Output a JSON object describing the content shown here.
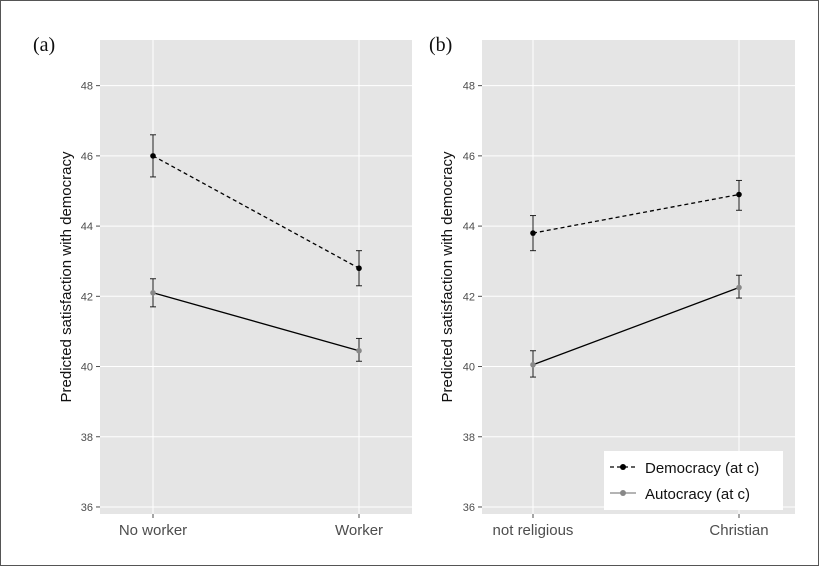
{
  "figure_colors": {
    "panel_bg": "#e5e5e5",
    "grid": "#ffffff",
    "democracy": "#000000",
    "autocracy": "#888888",
    "errorbar": "#222222",
    "frame": "#555555"
  },
  "chart_data": [
    {
      "type": "line",
      "panel_label": "(a)",
      "categories": [
        "No worker",
        "Worker"
      ],
      "ylabel": "Predicted satisfaction with democracy",
      "ylim": [
        35.8,
        49.3
      ],
      "yticks": [
        36,
        38,
        40,
        42,
        44,
        46,
        48
      ],
      "grid": true,
      "series": [
        {
          "name": "Democracy (at c)",
          "style": "dashed",
          "color": "#000000",
          "values": [
            46.0,
            42.8
          ],
          "lower": [
            45.4,
            42.3
          ],
          "upper": [
            46.6,
            43.3
          ]
        },
        {
          "name": "Autocracy (at c)",
          "style": "solid",
          "color": "#888888",
          "values": [
            42.1,
            40.45
          ],
          "lower": [
            41.7,
            40.15
          ],
          "upper": [
            42.5,
            40.8
          ]
        }
      ]
    },
    {
      "type": "line",
      "panel_label": "(b)",
      "categories": [
        "not religious",
        "Christian"
      ],
      "ylabel": "Predicted satisfaction with democracy",
      "ylim": [
        35.8,
        49.3
      ],
      "yticks": [
        36,
        38,
        40,
        42,
        44,
        46,
        48
      ],
      "grid": true,
      "legend_position": "bottom-right",
      "series": [
        {
          "name": "Democracy (at c)",
          "style": "dashed",
          "color": "#000000",
          "values": [
            43.8,
            44.9
          ],
          "lower": [
            43.3,
            44.45
          ],
          "upper": [
            44.3,
            45.3
          ]
        },
        {
          "name": "Autocracy (at c)",
          "style": "solid",
          "color": "#888888",
          "values": [
            40.05,
            42.25
          ],
          "lower": [
            39.7,
            41.95
          ],
          "upper": [
            40.45,
            42.6
          ]
        }
      ]
    }
  ]
}
